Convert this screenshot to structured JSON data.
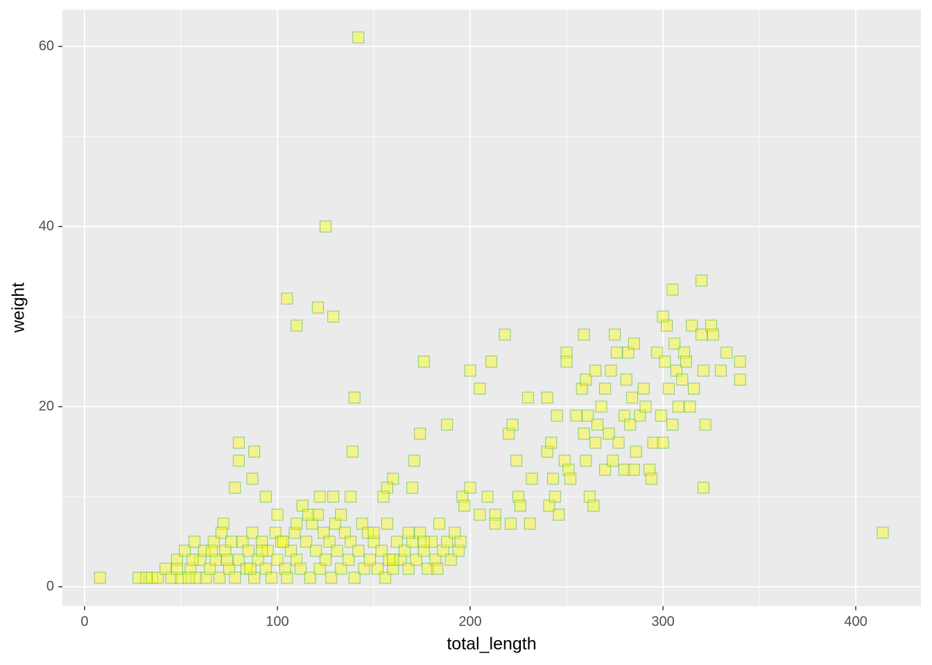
{
  "chart_data": {
    "type": "scatter",
    "x_label": "total_length",
    "y_label": "weight",
    "color": "#ffff00",
    "edge_color": "#5cb85c",
    "alpha": 0.4,
    "xlim": [
      -11.5,
      433.8
    ],
    "ylim": [
      -2.15,
      64.08
    ],
    "xticks": [
      0,
      100,
      200,
      300,
      400
    ],
    "yticks": [
      0,
      20,
      40,
      60
    ],
    "x_minor_grid": [
      50,
      150,
      250,
      350
    ],
    "y_minor_grid": [
      10,
      30,
      50
    ],
    "grid": true,
    "x": [
      8,
      142,
      125,
      105,
      121,
      129,
      110,
      140,
      139,
      176,
      200,
      205,
      211,
      218,
      174,
      188,
      171,
      170,
      160,
      157,
      155,
      80,
      80,
      88,
      87,
      78,
      94,
      100,
      414,
      72,
      28,
      32,
      35,
      38,
      42,
      45,
      48,
      50,
      52,
      55,
      57,
      58,
      60,
      62,
      63,
      65,
      67,
      68,
      70,
      71,
      73,
      75,
      76,
      78,
      80,
      82,
      84,
      85,
      87,
      88,
      90,
      92,
      94,
      95,
      97,
      99,
      100,
      102,
      104,
      105,
      107,
      109,
      110,
      112,
      113,
      115,
      117,
      118,
      120,
      121,
      122,
      124,
      125,
      127,
      128,
      130,
      131,
      133,
      135,
      137,
      138,
      140,
      142,
      144,
      145,
      147,
      148,
      150,
      152,
      154,
      156,
      157,
      158,
      160,
      162,
      164,
      166,
      168,
      170,
      172,
      174,
      176,
      178,
      180,
      182,
      184,
      186,
      188,
      190,
      192,
      194,
      195,
      196,
      197,
      138,
      129,
      122,
      116,
      103,
      92,
      86,
      74,
      66,
      56,
      48,
      54,
      133,
      110,
      150,
      160,
      168,
      176,
      183,
      200,
      205,
      209,
      213,
      213,
      220,
      222,
      224,
      225,
      226,
      221,
      230,
      232,
      231,
      240,
      240,
      241,
      242,
      243,
      245,
      244,
      246,
      249,
      250,
      250,
      251,
      252,
      255,
      258,
      259,
      259,
      260,
      260,
      261,
      262,
      264,
      265,
      265,
      266,
      268,
      270,
      270,
      272,
      273,
      274,
      275,
      276,
      277,
      280,
      280,
      281,
      282,
      283,
      284,
      285,
      285,
      286,
      288,
      290,
      291,
      293,
      295,
      294,
      297,
      299,
      300,
      300,
      301,
      302,
      303,
      305,
      305,
      306,
      307,
      308,
      310,
      311,
      312,
      314,
      315,
      316,
      320,
      320,
      321,
      322,
      321,
      325,
      326,
      330,
      333,
      340,
      340
    ],
    "values": [
      1,
      61,
      40,
      32,
      31,
      30,
      29,
      21,
      15,
      25,
      24,
      22,
      25,
      28,
      17,
      18,
      14,
      11,
      12,
      11,
      10,
      16,
      14,
      15,
      12,
      11,
      10,
      8,
      6,
      7,
      1,
      1,
      1,
      1,
      2,
      1,
      3,
      1,
      4,
      2,
      5,
      1,
      3,
      4,
      1,
      2,
      5,
      3,
      1,
      6,
      4,
      2,
      5,
      1,
      3,
      5,
      2,
      4,
      6,
      1,
      3,
      5,
      2,
      4,
      1,
      6,
      3,
      5,
      2,
      1,
      4,
      6,
      3,
      2,
      9,
      5,
      1,
      7,
      4,
      8,
      2,
      6,
      3,
      5,
      1,
      7,
      4,
      2,
      6,
      3,
      5,
      1,
      4,
      7,
      2,
      6,
      3,
      5,
      2,
      4,
      1,
      7,
      3,
      2,
      5,
      3,
      4,
      2,
      5,
      3,
      6,
      4,
      2,
      5,
      3,
      7,
      4,
      5,
      3,
      6,
      4,
      5,
      10,
      9,
      10,
      10,
      10,
      8,
      5,
      4,
      2,
      3,
      4,
      3,
      2,
      1,
      8,
      7,
      6,
      3,
      6,
      5,
      2,
      11,
      8,
      10,
      8,
      7,
      17,
      18,
      14,
      10,
      9,
      7,
      21,
      12,
      7,
      21,
      15,
      9,
      16,
      12,
      19,
      10,
      8,
      14,
      26,
      25,
      13,
      12,
      19,
      22,
      28,
      17,
      23,
      14,
      19,
      10,
      9,
      24,
      16,
      18,
      20,
      13,
      22,
      17,
      24,
      14,
      28,
      26,
      16,
      19,
      13,
      23,
      26,
      18,
      21,
      13,
      27,
      15,
      19,
      22,
      20,
      13,
      16,
      12,
      26,
      19,
      30,
      16,
      25,
      29,
      22,
      33,
      18,
      27,
      24,
      20,
      23,
      26,
      25,
      20,
      29,
      22,
      34,
      28,
      24,
      18,
      11,
      29,
      28,
      24,
      26,
      25,
      23
    ]
  }
}
